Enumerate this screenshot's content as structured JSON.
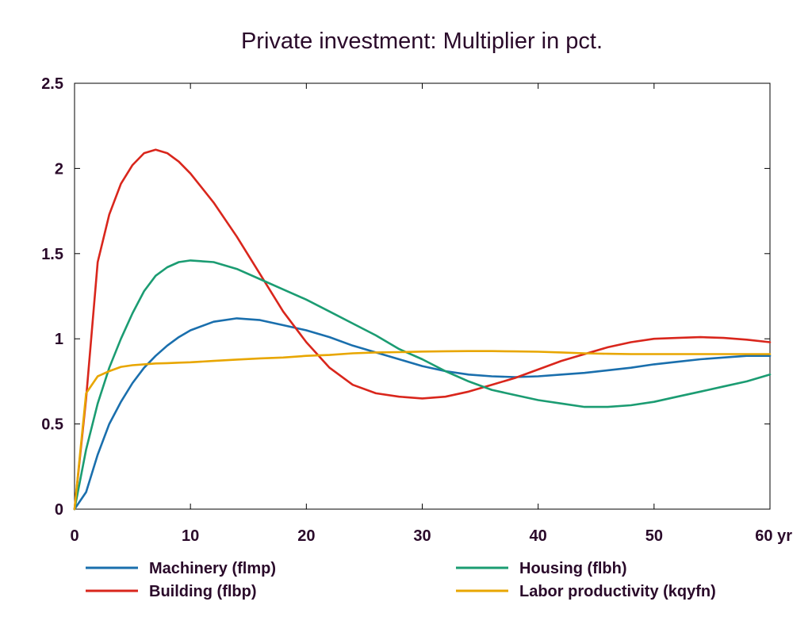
{
  "chart_data": {
    "type": "line",
    "title": "Private investment: Multiplier in pct.",
    "xlabel": "",
    "ylabel": "",
    "x_unit_label": "yr",
    "xlim": [
      0,
      60
    ],
    "ylim": [
      0,
      2.5
    ],
    "x_ticks": [
      0,
      10,
      20,
      30,
      40,
      50,
      60
    ],
    "x_tick_labels": [
      "0",
      "10",
      "20",
      "30",
      "40",
      "50",
      "60 yr"
    ],
    "y_ticks": [
      0,
      0.5,
      1,
      1.5,
      2,
      2.5
    ],
    "y_tick_labels": [
      "0",
      "0.5",
      "1",
      "1.5",
      "2",
      "2.5"
    ],
    "grid": false,
    "legend_position": "bottom",
    "x": [
      0,
      1,
      2,
      3,
      4,
      5,
      6,
      7,
      8,
      9,
      10,
      12,
      14,
      16,
      18,
      20,
      22,
      24,
      26,
      28,
      30,
      32,
      34,
      36,
      38,
      40,
      42,
      44,
      46,
      48,
      50,
      52,
      54,
      56,
      58,
      60
    ],
    "series": [
      {
        "name": "Machinery (flmp)",
        "color": "#1a6fad",
        "values": [
          0.0,
          0.1,
          0.32,
          0.5,
          0.63,
          0.74,
          0.83,
          0.9,
          0.96,
          1.01,
          1.05,
          1.1,
          1.12,
          1.11,
          1.08,
          1.05,
          1.01,
          0.96,
          0.92,
          0.88,
          0.84,
          0.81,
          0.79,
          0.78,
          0.775,
          0.78,
          0.79,
          0.8,
          0.815,
          0.83,
          0.85,
          0.865,
          0.88,
          0.89,
          0.9,
          0.9
        ]
      },
      {
        "name": "Building (flbp)",
        "color": "#d9261c",
        "values": [
          0.0,
          0.65,
          1.45,
          1.73,
          1.91,
          2.02,
          2.09,
          2.11,
          2.09,
          2.04,
          1.97,
          1.8,
          1.6,
          1.38,
          1.16,
          0.98,
          0.83,
          0.73,
          0.68,
          0.66,
          0.65,
          0.66,
          0.69,
          0.73,
          0.77,
          0.82,
          0.87,
          0.91,
          0.95,
          0.98,
          1.0,
          1.005,
          1.01,
          1.005,
          0.995,
          0.98
        ]
      },
      {
        "name": "Housing (flbh)",
        "color": "#1b9c72",
        "values": [
          0.0,
          0.35,
          0.62,
          0.83,
          1.0,
          1.15,
          1.28,
          1.37,
          1.42,
          1.45,
          1.46,
          1.45,
          1.41,
          1.35,
          1.29,
          1.23,
          1.16,
          1.09,
          1.02,
          0.94,
          0.88,
          0.81,
          0.75,
          0.7,
          0.67,
          0.64,
          0.62,
          0.6,
          0.6,
          0.61,
          0.63,
          0.66,
          0.69,
          0.72,
          0.75,
          0.79
        ]
      },
      {
        "name": "Labor productivity (kqyfn)",
        "color": "#e8a600",
        "values": [
          0.0,
          0.68,
          0.78,
          0.81,
          0.835,
          0.845,
          0.85,
          0.855,
          0.857,
          0.86,
          0.862,
          0.87,
          0.878,
          0.885,
          0.89,
          0.9,
          0.905,
          0.915,
          0.92,
          0.922,
          0.925,
          0.927,
          0.928,
          0.928,
          0.926,
          0.924,
          0.92,
          0.915,
          0.912,
          0.91,
          0.91,
          0.91,
          0.91,
          0.91,
          0.91,
          0.91
        ]
      }
    ]
  }
}
